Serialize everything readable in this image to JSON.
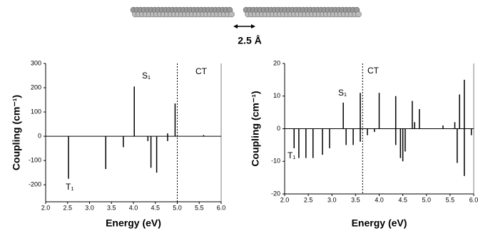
{
  "header": {
    "distance_label": "2.5 Å"
  },
  "chart_data": [
    {
      "type": "stick",
      "x_label": "Energy (eV)",
      "y_label": "Coupling (cm⁻¹)",
      "annotations": [
        "T₁",
        "S₁",
        "CT"
      ],
      "ct_energy": 5.0,
      "x": [
        2.52,
        3.37,
        3.77,
        4.02,
        4.33,
        4.4,
        4.53,
        4.78,
        4.78,
        4.95,
        5.6
      ],
      "values": [
        -175,
        -135,
        -45,
        205,
        -20,
        -130,
        -150,
        12,
        -20,
        135,
        5
      ],
      "color": "#000000",
      "xlim": [
        2,
        6
      ],
      "ylim": [
        -270,
        300
      ],
      "xticks": [
        {
          "value": 2,
          "label": "2.0"
        },
        {
          "value": 2.5,
          "label": "2.5"
        },
        {
          "value": 3,
          "label": "3.0"
        },
        {
          "value": 3.5,
          "label": "3.5"
        },
        {
          "value": 4,
          "label": "4.0"
        },
        {
          "value": 4.5,
          "label": "4.5"
        },
        {
          "value": 5,
          "label": "5.0"
        },
        {
          "value": 5.5,
          "label": "5.5"
        },
        {
          "value": 6,
          "label": "6.0"
        }
      ],
      "yticks": [
        -200,
        -100,
        0,
        100,
        200,
        300
      ]
    },
    {
      "type": "stick",
      "x_label": "Energy (eV)",
      "y_label": "Coupling (cm⁻¹)",
      "annotations": [
        "T₁",
        "S₁",
        "CT"
      ],
      "ct_energy": 3.65,
      "x": [
        2.2,
        2.3,
        2.45,
        2.6,
        2.8,
        2.95,
        3.24,
        3.3,
        3.45,
        3.6,
        3.6,
        3.75,
        3.9,
        4.0,
        4.35,
        4.35,
        4.45,
        4.5,
        4.55,
        4.7,
        4.75,
        4.85,
        5.35,
        5.6,
        5.65,
        5.7,
        5.8,
        5.8,
        5.95
      ],
      "values": [
        -6,
        -9,
        -9,
        -9,
        -8,
        -6,
        8,
        -5,
        -5,
        11,
        -4,
        -2,
        -1,
        11,
        10,
        -5,
        -9,
        -10,
        -7,
        8.5,
        2,
        6,
        1,
        2,
        -10.5,
        10.5,
        15,
        -14.5,
        -2
      ],
      "color": "#000000",
      "xlim": [
        2,
        6
      ],
      "ylim": [
        -20,
        20
      ],
      "xticks": [
        {
          "value": 2,
          "label": "2.0"
        },
        {
          "value": 2.5,
          "label": "2.5"
        },
        {
          "value": 3,
          "label": "3.0"
        },
        {
          "value": 3.5,
          "label": "3.5"
        },
        {
          "value": 4,
          "label": "4.0"
        },
        {
          "value": 4.5,
          "label": "4.5"
        },
        {
          "value": 5,
          "label": "5.0"
        },
        {
          "value": 5.5,
          "label": "5.5"
        },
        {
          "value": 6,
          "label": "6.0"
        }
      ],
      "yticks": [
        -20,
        -10,
        0,
        10,
        20
      ]
    }
  ]
}
